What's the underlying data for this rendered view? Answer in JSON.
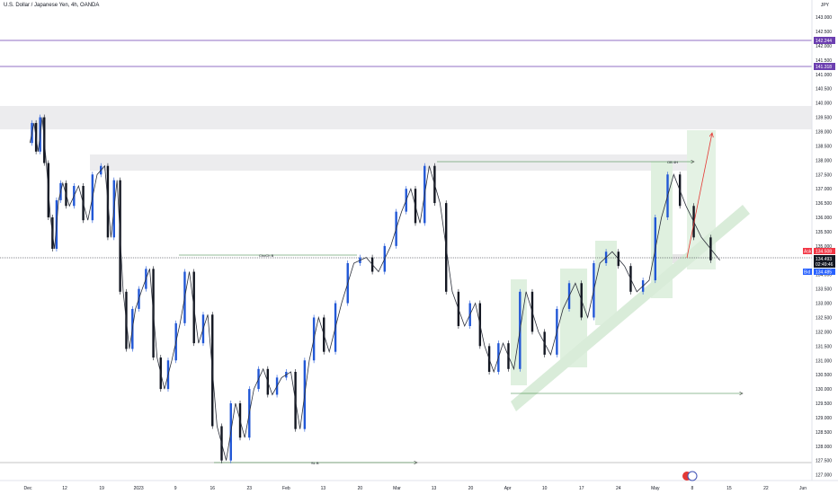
{
  "header": {
    "title": "U.S. Dollar / Japanese Yen, 4h, OANDA",
    "currency": "JPY"
  },
  "price_axis": {
    "ticks": [
      "143.000",
      "142.500",
      "142.000",
      "141.500",
      "141.000",
      "140.500",
      "140.000",
      "139.500",
      "139.000",
      "138.500",
      "138.000",
      "137.500",
      "137.000",
      "136.500",
      "136.000",
      "135.500",
      "135.000",
      "134.500",
      "134.000",
      "133.500",
      "133.000",
      "132.500",
      "132.000",
      "131.500",
      "131.000",
      "130.500",
      "130.000",
      "129.500",
      "129.000",
      "128.500",
      "128.000",
      "127.500",
      "127.000"
    ],
    "range": [
      126.8,
      143.6
    ]
  },
  "time_axis": {
    "labels": [
      "Dec",
      "12",
      "19",
      "2023",
      "9",
      "16",
      "23",
      "Feb",
      "13",
      "20",
      "Mar",
      "13",
      "20",
      "Apr",
      "10",
      "17",
      "24",
      "May",
      "8",
      "15",
      "22",
      "Jun"
    ]
  },
  "levels": {
    "upper_line": {
      "price": 142.244,
      "label": "142.244",
      "color": "#6c3fb0"
    },
    "lower_line": {
      "price": 141.318,
      "label": "141.318",
      "color": "#6c3fb0"
    },
    "ask": {
      "label": "Ask",
      "price": "134.508",
      "color": "#f23645"
    },
    "last": {
      "price": "134.493",
      "countdown": "02:49:46",
      "color": "#131722"
    },
    "bid": {
      "label": "Bid",
      "price": "134.485",
      "color": "#2962ff"
    }
  },
  "annotations": {
    "choch": "ChoCh B",
    "ob": "OB 4H",
    "sl": "SL B"
  },
  "colors": {
    "candle_up": "#2157d6",
    "candle_down": "#131722",
    "zone_grey": "#e9e9eb",
    "zone_green": "#c8e6c9",
    "arrow": "#e53935"
  },
  "chart_data": {
    "type": "candlestick",
    "symbol": "USDJPY",
    "timeframe": "4h",
    "y_unit": "JPY",
    "ylim": [
      126.8,
      143.6
    ],
    "path_points": [
      [
        "Dec",
        138.6
      ],
      [
        "Dec",
        139.3
      ],
      [
        "Dec",
        138.3
      ],
      [
        "Dec",
        139.5
      ],
      [
        "Dec",
        137.9
      ],
      [
        "Dec",
        136.0
      ],
      [
        "Dec",
        134.9
      ],
      [
        "Dec",
        136.6
      ],
      [
        "Dec",
        137.2
      ],
      [
        "12",
        136.4
      ],
      [
        "12",
        137.1
      ],
      [
        "12",
        135.9
      ],
      [
        "12",
        137.5
      ],
      [
        "19",
        137.8
      ],
      [
        "19",
        135.3
      ],
      [
        "19",
        137.3
      ],
      [
        "19",
        133.4
      ],
      [
        "19",
        131.4
      ],
      [
        "19",
        132.8
      ],
      [
        "2023",
        133.5
      ],
      [
        "2023",
        134.2
      ],
      [
        "2023",
        131.1
      ],
      [
        "2023",
        130.0
      ],
      [
        "2023",
        131.0
      ],
      [
        "9",
        132.3
      ],
      [
        "9",
        134.1
      ],
      [
        "9",
        131.6
      ],
      [
        "9",
        132.6
      ],
      [
        "16",
        128.7
      ],
      [
        "16",
        127.5
      ],
      [
        "16",
        129.5
      ],
      [
        "16",
        128.3
      ],
      [
        "23",
        130.0
      ],
      [
        "23",
        130.7
      ],
      [
        "23",
        129.8
      ],
      [
        "23",
        130.4
      ],
      [
        "Feb",
        130.6
      ],
      [
        "Feb",
        128.6
      ],
      [
        "Feb",
        131.0
      ],
      [
        "Feb",
        132.5
      ],
      [
        "13",
        131.3
      ],
      [
        "13",
        133.0
      ],
      [
        "13",
        134.4
      ],
      [
        "20",
        134.6
      ],
      [
        "20",
        134.1
      ],
      [
        "20",
        135.0
      ],
      [
        "Mar",
        136.2
      ],
      [
        "Mar",
        137.0
      ],
      [
        "Mar",
        135.8
      ],
      [
        "Mar",
        137.8
      ],
      [
        "13",
        136.5
      ],
      [
        "13",
        133.4
      ],
      [
        "13",
        132.2
      ],
      [
        "20",
        133.0
      ],
      [
        "20",
        131.5
      ],
      [
        "20",
        130.6
      ],
      [
        "20",
        131.6
      ],
      [
        "Apr",
        130.7
      ],
      [
        "Apr",
        133.4
      ],
      [
        "Apr",
        132.0
      ],
      [
        "10",
        131.2
      ],
      [
        "10",
        132.8
      ],
      [
        "10",
        133.7
      ],
      [
        "17",
        132.5
      ],
      [
        "17",
        134.4
      ],
      [
        "17",
        134.8
      ],
      [
        "24",
        134.3
      ],
      [
        "24",
        133.4
      ],
      [
        "24",
        133.8
      ],
      [
        "May",
        136.0
      ],
      [
        "May",
        137.5
      ],
      [
        "May",
        136.4
      ],
      [
        "8",
        135.3
      ],
      [
        "8",
        134.5
      ]
    ],
    "last_price": 134.493,
    "ask": 134.508,
    "bid": 134.485
  }
}
